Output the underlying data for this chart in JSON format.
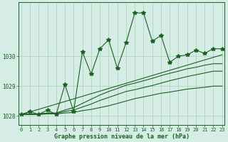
{
  "title": "Graphe pression niveau de la mer (hPa)",
  "x": [
    0,
    1,
    2,
    3,
    4,
    5,
    6,
    7,
    8,
    9,
    10,
    11,
    12,
    13,
    14,
    15,
    16,
    17,
    18,
    19,
    20,
    21,
    22,
    23
  ],
  "ylim": [
    1027.7,
    1031.8
  ],
  "yticks": [
    1028,
    1029,
    1030
  ],
  "xlim": [
    -0.3,
    23.3
  ],
  "bg_color": "#d5ede5",
  "grid_color": "#a8cfc0",
  "line_color": "#1a6020",
  "marker": "*",
  "markersize": 4,
  "main_values": [
    1028.05,
    1028.15,
    1028.05,
    1028.2,
    1028.05,
    1029.05,
    1028.15,
    1030.15,
    1029.4,
    1030.25,
    1030.55,
    1029.6,
    1030.45,
    1031.45,
    1031.45,
    1030.5,
    1030.7,
    1029.8,
    1030.0,
    1030.05,
    1030.2,
    1030.1,
    1030.25,
    1030.25
  ],
  "smooth1": [
    1028.05,
    1028.05,
    1028.05,
    1028.07,
    1028.07,
    1028.1,
    1028.12,
    1028.18,
    1028.22,
    1028.28,
    1028.34,
    1028.42,
    1028.5,
    1028.58,
    1028.64,
    1028.7,
    1028.76,
    1028.8,
    1028.85,
    1028.9,
    1028.93,
    1028.96,
    1029.0,
    1029.0
  ],
  "smooth2": [
    1028.05,
    1028.06,
    1028.06,
    1028.09,
    1028.09,
    1028.15,
    1028.2,
    1028.3,
    1028.4,
    1028.52,
    1028.62,
    1028.72,
    1028.82,
    1028.88,
    1028.95,
    1029.02,
    1029.1,
    1029.18,
    1029.25,
    1029.32,
    1029.38,
    1029.44,
    1029.5,
    1029.5
  ],
  "smooth3": [
    1028.05,
    1028.07,
    1028.07,
    1028.1,
    1028.1,
    1028.2,
    1028.28,
    1028.42,
    1028.56,
    1028.7,
    1028.82,
    1028.92,
    1029.03,
    1029.1,
    1029.18,
    1029.26,
    1029.35,
    1029.43,
    1029.5,
    1029.58,
    1029.63,
    1029.7,
    1029.75,
    1029.75
  ],
  "smooth4_from": [
    0,
    23
  ],
  "smooth4_vals": [
    1028.05,
    1030.05
  ]
}
